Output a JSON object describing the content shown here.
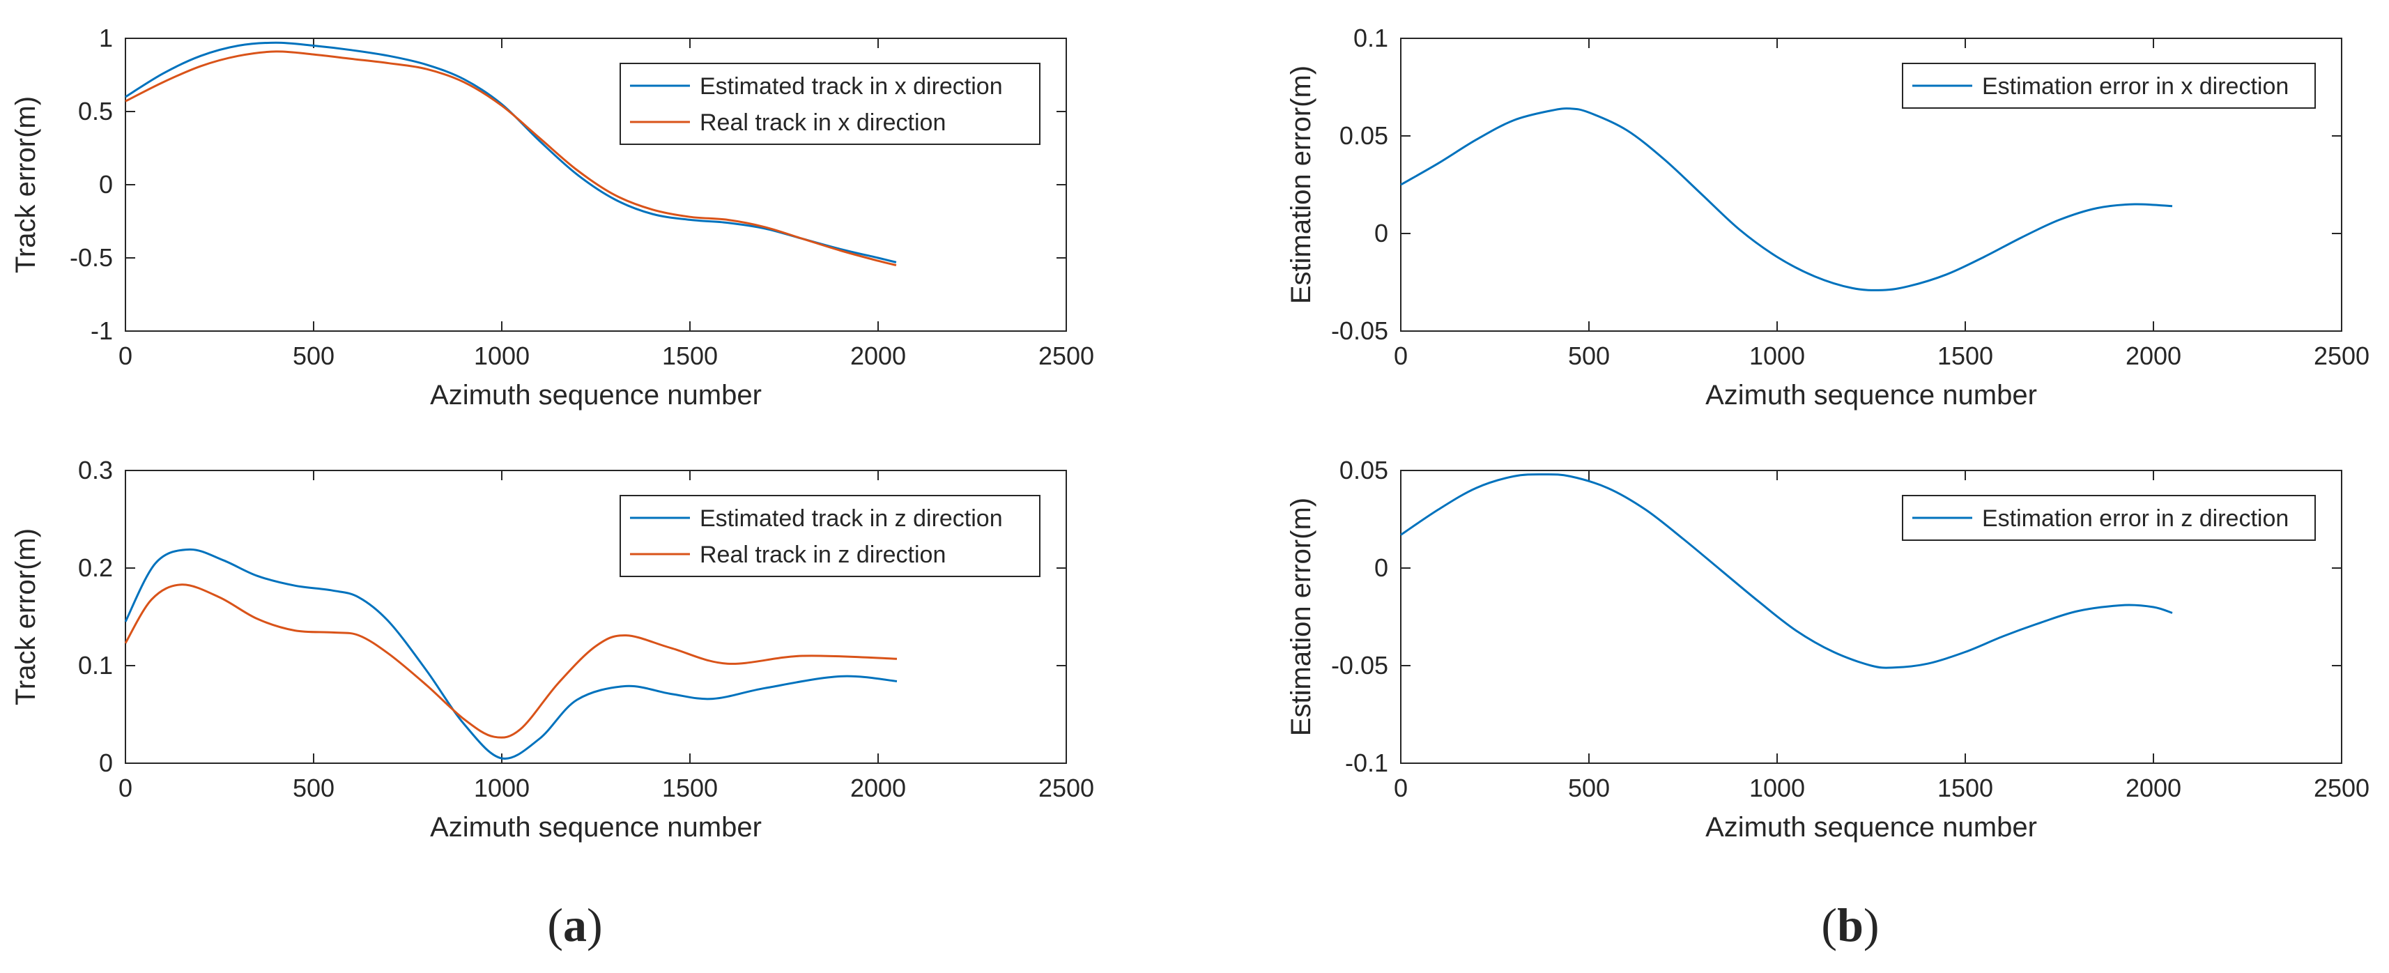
{
  "captions": {
    "a": {
      "open": "(",
      "letter": "a",
      "close": ")"
    },
    "b": {
      "open": "(",
      "letter": "b",
      "close": ")"
    }
  },
  "chart_data": [
    {
      "type": "line",
      "xlabel": "Azimuth sequence number",
      "ylabel": "Track error(m)",
      "xlim": [
        0,
        2500
      ],
      "ylim": [
        -1,
        1
      ],
      "xticks": [
        0,
        500,
        1000,
        1500,
        2000,
        2500
      ],
      "yticks": [
        -1,
        -0.5,
        0,
        0.5,
        1
      ],
      "xtick_labels": [
        "0",
        "500",
        "1000",
        "1500",
        "2000",
        "2500"
      ],
      "ytick_labels": [
        "-1",
        "-0.5",
        "0",
        "0.5",
        "1"
      ],
      "grid": false,
      "legend_position": "top-right",
      "series": [
        {
          "name": "Estimated track in x direction",
          "color": "#0072BD",
          "x": [
            0,
            100,
            200,
            300,
            400,
            500,
            600,
            700,
            800,
            900,
            1000,
            1100,
            1200,
            1300,
            1400,
            1500,
            1600,
            1700,
            1800,
            1900,
            2000,
            2048
          ],
          "y": [
            0.6,
            0.76,
            0.88,
            0.95,
            0.97,
            0.95,
            0.92,
            0.88,
            0.82,
            0.72,
            0.55,
            0.3,
            0.07,
            -0.1,
            -0.2,
            -0.24,
            -0.26,
            -0.3,
            -0.37,
            -0.44,
            -0.5,
            -0.53
          ]
        },
        {
          "name": "Real track in x direction",
          "color": "#D95319",
          "x": [
            0,
            100,
            200,
            300,
            400,
            500,
            600,
            700,
            800,
            900,
            1000,
            1100,
            1200,
            1300,
            1400,
            1500,
            1600,
            1700,
            1800,
            1900,
            2000,
            2048
          ],
          "y": [
            0.57,
            0.7,
            0.81,
            0.88,
            0.91,
            0.89,
            0.86,
            0.83,
            0.79,
            0.7,
            0.54,
            0.32,
            0.1,
            -0.07,
            -0.17,
            -0.22,
            -0.24,
            -0.29,
            -0.37,
            -0.45,
            -0.52,
            -0.55
          ]
        }
      ]
    },
    {
      "type": "line",
      "xlabel": "Azimuth sequence number",
      "ylabel": "Estimation error(m)",
      "xlim": [
        0,
        2500
      ],
      "ylim": [
        -0.05,
        0.1
      ],
      "xticks": [
        0,
        500,
        1000,
        1500,
        2000,
        2500
      ],
      "yticks": [
        -0.05,
        0,
        0.05,
        0.1
      ],
      "xtick_labels": [
        "0",
        "500",
        "1000",
        "1500",
        "2000",
        "2500"
      ],
      "ytick_labels": [
        "-0.05",
        "0",
        "0.05",
        "0.1"
      ],
      "grid": false,
      "legend_position": "top-right",
      "series": [
        {
          "name": "Estimation error in x direction",
          "color": "#0072BD",
          "x": [
            0,
            100,
            200,
            300,
            400,
            450,
            500,
            600,
            700,
            800,
            900,
            1000,
            1100,
            1200,
            1280,
            1350,
            1450,
            1550,
            1650,
            1750,
            1850,
            1950,
            2050
          ],
          "y": [
            0.025,
            0.036,
            0.048,
            0.058,
            0.063,
            0.064,
            0.062,
            0.053,
            0.038,
            0.02,
            0.002,
            -0.012,
            -0.022,
            -0.028,
            -0.029,
            -0.027,
            -0.021,
            -0.012,
            -0.002,
            0.007,
            0.013,
            0.015,
            0.014
          ]
        }
      ]
    },
    {
      "type": "line",
      "xlabel": "Azimuth sequence number",
      "ylabel": "Track error(m)",
      "xlim": [
        0,
        2500
      ],
      "ylim": [
        0,
        0.3
      ],
      "xticks": [
        0,
        500,
        1000,
        1500,
        2000,
        2500
      ],
      "yticks": [
        0,
        0.1,
        0.2,
        0.3
      ],
      "xtick_labels": [
        "0",
        "500",
        "1000",
        "1500",
        "2000",
        "2500"
      ],
      "ytick_labels": [
        "0",
        "0.1",
        "0.2",
        "0.3"
      ],
      "grid": false,
      "legend_position": "top-right",
      "series": [
        {
          "name": "Estimated track in z direction",
          "color": "#0072BD",
          "x": [
            0,
            80,
            170,
            260,
            350,
            450,
            550,
            620,
            700,
            800,
            900,
            1000,
            1100,
            1200,
            1330,
            1450,
            1560,
            1700,
            1900,
            2050
          ],
          "y": [
            0.145,
            0.205,
            0.219,
            0.208,
            0.192,
            0.182,
            0.177,
            0.17,
            0.145,
            0.095,
            0.04,
            0.005,
            0.025,
            0.065,
            0.079,
            0.071,
            0.066,
            0.077,
            0.089,
            0.084
          ]
        },
        {
          "name": "Real track in z direction",
          "color": "#D95319",
          "x": [
            0,
            70,
            150,
            250,
            350,
            450,
            550,
            620,
            700,
            800,
            900,
            980,
            1050,
            1150,
            1250,
            1330,
            1450,
            1600,
            1800,
            2050
          ],
          "y": [
            0.123,
            0.168,
            0.183,
            0.17,
            0.148,
            0.136,
            0.134,
            0.131,
            0.112,
            0.08,
            0.045,
            0.027,
            0.035,
            0.082,
            0.12,
            0.131,
            0.118,
            0.102,
            0.11,
            0.107
          ]
        }
      ]
    },
    {
      "type": "line",
      "xlabel": "Azimuth sequence number",
      "ylabel": "Estimation error(m)",
      "xlim": [
        0,
        2500
      ],
      "ylim": [
        -0.1,
        0.05
      ],
      "xticks": [
        0,
        500,
        1000,
        1500,
        2000,
        2500
      ],
      "yticks": [
        -0.1,
        -0.05,
        0,
        0.05
      ],
      "xtick_labels": [
        "0",
        "500",
        "1000",
        "1500",
        "2000",
        "2500"
      ],
      "ytick_labels": [
        "-0.1",
        "-0.05",
        "0",
        "0.05"
      ],
      "grid": false,
      "legend_position": "top-right",
      "series": [
        {
          "name": "Estimation error in z direction",
          "color": "#0072BD",
          "x": [
            0,
            100,
            200,
            300,
            380,
            450,
            550,
            650,
            750,
            850,
            950,
            1050,
            1150,
            1250,
            1310,
            1400,
            1500,
            1600,
            1700,
            1800,
            1920,
            2000,
            2050
          ],
          "y": [
            0.017,
            0.03,
            0.041,
            0.047,
            0.048,
            0.047,
            0.041,
            0.03,
            0.015,
            -0.001,
            -0.017,
            -0.032,
            -0.043,
            -0.05,
            -0.051,
            -0.049,
            -0.043,
            -0.035,
            -0.028,
            -0.022,
            -0.019,
            -0.02,
            -0.023
          ]
        }
      ]
    }
  ]
}
